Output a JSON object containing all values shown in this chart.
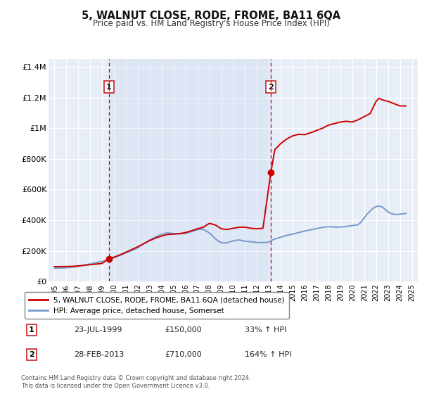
{
  "title": "5, WALNUT CLOSE, RODE, FROME, BA11 6QA",
  "subtitle": "Price paid vs. HM Land Registry's House Price Index (HPI)",
  "legend_label_red": "5, WALNUT CLOSE, RODE, FROME, BA11 6QA (detached house)",
  "legend_label_blue": "HPI: Average price, detached house, Somerset",
  "annotation1_label": "1",
  "annotation1_date": "23-JUL-1999",
  "annotation1_price": "£150,000",
  "annotation1_hpi": "33% ↑ HPI",
  "annotation1_year": 1999.55,
  "annotation1_value": 150000,
  "annotation2_label": "2",
  "annotation2_date": "28-FEB-2013",
  "annotation2_price": "£710,000",
  "annotation2_hpi": "164% ↑ HPI",
  "annotation2_year": 2013.16,
  "annotation2_value": 710000,
  "ylim": [
    0,
    1450000
  ],
  "yticks": [
    0,
    200000,
    400000,
    600000,
    800000,
    1000000,
    1200000,
    1400000
  ],
  "ytick_labels": [
    "£0",
    "£200K",
    "£400K",
    "£600K",
    "£800K",
    "£1M",
    "£1.2M",
    "£1.4M"
  ],
  "xlim_start": 1994.5,
  "xlim_end": 2025.5,
  "fig_bg_color": "#ffffff",
  "plot_bg_color": "#e8eef8",
  "grid_color": "#ffffff",
  "red_color": "#cc0000",
  "blue_color": "#7799cc",
  "footnote": "Contains HM Land Registry data © Crown copyright and database right 2024.\nThis data is licensed under the Open Government Licence v3.0.",
  "hpi_x": [
    1995.0,
    1995.25,
    1995.5,
    1995.75,
    1996.0,
    1996.25,
    1996.5,
    1996.75,
    1997.0,
    1997.25,
    1997.5,
    1997.75,
    1998.0,
    1998.25,
    1998.5,
    1998.75,
    1999.0,
    1999.25,
    1999.5,
    1999.75,
    2000.0,
    2000.25,
    2000.5,
    2000.75,
    2001.0,
    2001.25,
    2001.5,
    2001.75,
    2002.0,
    2002.25,
    2002.5,
    2002.75,
    2003.0,
    2003.25,
    2003.5,
    2003.75,
    2004.0,
    2004.25,
    2004.5,
    2004.75,
    2005.0,
    2005.25,
    2005.5,
    2005.75,
    2006.0,
    2006.25,
    2006.5,
    2006.75,
    2007.0,
    2007.25,
    2007.5,
    2007.75,
    2008.0,
    2008.25,
    2008.5,
    2008.75,
    2009.0,
    2009.25,
    2009.5,
    2009.75,
    2010.0,
    2010.25,
    2010.5,
    2010.75,
    2011.0,
    2011.25,
    2011.5,
    2011.75,
    2012.0,
    2012.25,
    2012.5,
    2012.75,
    2013.0,
    2013.25,
    2013.5,
    2013.75,
    2014.0,
    2014.25,
    2014.5,
    2014.75,
    2015.0,
    2015.25,
    2015.5,
    2015.75,
    2016.0,
    2016.25,
    2016.5,
    2016.75,
    2017.0,
    2017.25,
    2017.5,
    2017.75,
    2018.0,
    2018.25,
    2018.5,
    2018.75,
    2019.0,
    2019.25,
    2019.5,
    2019.75,
    2020.0,
    2020.25,
    2020.5,
    2020.75,
    2021.0,
    2021.25,
    2021.5,
    2021.75,
    2022.0,
    2022.25,
    2022.5,
    2022.75,
    2023.0,
    2023.25,
    2023.5,
    2023.75,
    2024.0,
    2024.25,
    2024.5
  ],
  "hpi_y": [
    88000,
    88500,
    89000,
    90000,
    91000,
    93000,
    95000,
    97000,
    100000,
    104000,
    108000,
    112000,
    116000,
    120000,
    124000,
    128000,
    132000,
    136000,
    140000,
    148000,
    156000,
    164000,
    172000,
    180000,
    188000,
    196000,
    204000,
    212000,
    222000,
    235000,
    248000,
    260000,
    272000,
    282000,
    292000,
    300000,
    308000,
    315000,
    318000,
    316000,
    314000,
    313000,
    312000,
    313000,
    315000,
    320000,
    326000,
    332000,
    338000,
    342000,
    340000,
    330000,
    318000,
    300000,
    280000,
    265000,
    255000,
    252000,
    254000,
    260000,
    266000,
    270000,
    272000,
    268000,
    264000,
    262000,
    260000,
    258000,
    256000,
    255000,
    255000,
    256000,
    258000,
    270000,
    278000,
    284000,
    290000,
    296000,
    302000,
    306000,
    310000,
    315000,
    320000,
    325000,
    330000,
    334000,
    338000,
    342000,
    346000,
    350000,
    354000,
    356000,
    358000,
    358000,
    356000,
    355000,
    356000,
    358000,
    360000,
    363000,
    366000,
    368000,
    372000,
    390000,
    415000,
    440000,
    460000,
    478000,
    490000,
    492000,
    488000,
    472000,
    455000,
    445000,
    440000,
    438000,
    440000,
    442000,
    445000
  ],
  "price_x": [
    1995.0,
    1995.5,
    1996.0,
    1996.5,
    1997.0,
    1997.5,
    1998.0,
    1998.5,
    1999.0,
    1999.55,
    2000.0,
    2000.5,
    2001.0,
    2001.5,
    2002.0,
    2002.5,
    2003.0,
    2003.5,
    2004.0,
    2004.5,
    2005.0,
    2005.5,
    2006.0,
    2006.5,
    2007.0,
    2007.5,
    2008.0,
    2008.5,
    2009.0,
    2009.5,
    2010.0,
    2010.5,
    2011.0,
    2011.5,
    2012.0,
    2012.5,
    2013.16,
    2013.5,
    2014.0,
    2014.5,
    2015.0,
    2015.5,
    2016.0,
    2016.5,
    2017.0,
    2017.5,
    2018.0,
    2018.5,
    2019.0,
    2019.5,
    2020.0,
    2020.5,
    2021.0,
    2021.5,
    2022.0,
    2022.25,
    2022.5,
    2023.0,
    2023.5,
    2024.0,
    2024.5
  ],
  "price_y": [
    98000,
    98500,
    99000,
    100000,
    103000,
    107000,
    111000,
    115000,
    119000,
    150000,
    160000,
    175000,
    192000,
    210000,
    228000,
    248000,
    268000,
    285000,
    298000,
    308000,
    310000,
    313000,
    320000,
    332000,
    345000,
    355000,
    380000,
    370000,
    345000,
    340000,
    348000,
    355000,
    355000,
    348000,
    345000,
    348000,
    710000,
    860000,
    900000,
    930000,
    950000,
    960000,
    958000,
    970000,
    985000,
    1000000,
    1020000,
    1030000,
    1040000,
    1045000,
    1040000,
    1055000,
    1075000,
    1095000,
    1175000,
    1195000,
    1185000,
    1175000,
    1160000,
    1145000,
    1145000
  ]
}
